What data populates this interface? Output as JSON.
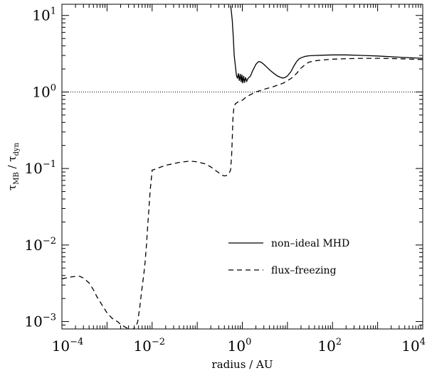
{
  "chart_data": {
    "type": "line",
    "title": "",
    "xlabel": "radius / AU",
    "ylabel": "τ_MB / τ_dyn",
    "xscale": "log",
    "yscale": "log",
    "xlim": [
      0.0001,
      10000
    ],
    "ylim": [
      0.0008,
      14
    ],
    "x_ticks": [
      {
        "base": "10",
        "exp": "−4"
      },
      {
        "base": "10",
        "exp": "−2"
      },
      {
        "base": "10",
        "exp": "0"
      },
      {
        "base": "10",
        "exp": "2"
      },
      {
        "base": "10",
        "exp": "4"
      }
    ],
    "y_ticks": [
      {
        "base": "10",
        "exp": "−3"
      },
      {
        "base": "10",
        "exp": "−2"
      },
      {
        "base": "10",
        "exp": "−1"
      },
      {
        "base": "10",
        "exp": "0"
      },
      {
        "base": "10",
        "exp": "1"
      }
    ],
    "x_tick_values": [
      0.0001,
      0.01,
      1,
      100,
      10000
    ],
    "y_tick_values": [
      0.001,
      0.01,
      0.1,
      1,
      10
    ],
    "grid": false,
    "legend_position": "lower-right",
    "reference_line": {
      "y": 1,
      "style": "dotted"
    },
    "series": [
      {
        "name": "non–ideal MHD",
        "style": "solid",
        "x": [
          0.55,
          0.57,
          0.6,
          0.63,
          0.66,
          0.7,
          0.74,
          0.78,
          0.82,
          0.86,
          0.9,
          0.94,
          0.98,
          1.02,
          1.07,
          1.12,
          1.18,
          1.25,
          1.35,
          1.5,
          1.7,
          2.0,
          2.3,
          2.6,
          3.0,
          3.5,
          4.2,
          5.0,
          6.0,
          7.0,
          8.0,
          9.0,
          10,
          12,
          14,
          16,
          18,
          20,
          25,
          30,
          40,
          60,
          100,
          200,
          500,
          1000,
          3000,
          10000
        ],
        "y": [
          13.5,
          11.5,
          8.5,
          5.2,
          3.0,
          2.2,
          1.65,
          1.5,
          1.75,
          1.4,
          1.72,
          1.35,
          1.68,
          1.3,
          1.62,
          1.32,
          1.55,
          1.38,
          1.52,
          1.6,
          1.9,
          2.3,
          2.5,
          2.45,
          2.3,
          2.1,
          1.9,
          1.75,
          1.62,
          1.55,
          1.52,
          1.55,
          1.62,
          1.85,
          2.2,
          2.5,
          2.7,
          2.8,
          2.92,
          2.97,
          3.0,
          3.02,
          3.05,
          3.05,
          3.0,
          2.95,
          2.85,
          2.75
        ]
      },
      {
        "name": "flux–freezing",
        "style": "dashed",
        "x": [
          0.0001,
          0.00012,
          0.00015,
          0.0002,
          0.00025,
          0.0003,
          0.0004,
          0.0005,
          0.0006,
          0.0008,
          0.001,
          0.0013,
          0.0017,
          0.002,
          0.0025,
          0.003,
          0.0035,
          0.0038,
          0.004,
          0.0043,
          0.0045,
          0.0048,
          0.005,
          0.0053,
          0.0056,
          0.006,
          0.0065,
          0.007,
          0.0075,
          0.008,
          0.009,
          0.01,
          0.02,
          0.04,
          0.07,
          0.1,
          0.15,
          0.2,
          0.25,
          0.3,
          0.35,
          0.4,
          0.45,
          0.5,
          0.55,
          0.58,
          0.6,
          0.62,
          0.65,
          0.7,
          0.8,
          1.0,
          1.2,
          1.5,
          2.0,
          3.0,
          5.0,
          8.0,
          12,
          16,
          20,
          25,
          30,
          40,
          60,
          100,
          200,
          500,
          1000,
          3000,
          10000
        ],
        "y": [
          0.0036,
          0.0037,
          0.0038,
          0.0039,
          0.0039,
          0.0037,
          0.0032,
          0.0026,
          0.0021,
          0.0016,
          0.0013,
          0.0011,
          0.001,
          0.00092,
          0.00085,
          0.0008,
          0.00078,
          0.0008,
          0.00082,
          0.00086,
          0.0009,
          0.001,
          0.0012,
          0.0015,
          0.002,
          0.0028,
          0.004,
          0.006,
          0.01,
          0.018,
          0.05,
          0.095,
          0.11,
          0.12,
          0.125,
          0.122,
          0.115,
          0.105,
          0.095,
          0.088,
          0.082,
          0.08,
          0.081,
          0.085,
          0.095,
          0.15,
          0.25,
          0.45,
          0.62,
          0.7,
          0.74,
          0.78,
          0.85,
          0.92,
          1.0,
          1.08,
          1.18,
          1.3,
          1.5,
          1.75,
          2.05,
          2.3,
          2.45,
          2.55,
          2.62,
          2.68,
          2.72,
          2.75,
          2.75,
          2.72,
          2.65
        ]
      }
    ]
  }
}
